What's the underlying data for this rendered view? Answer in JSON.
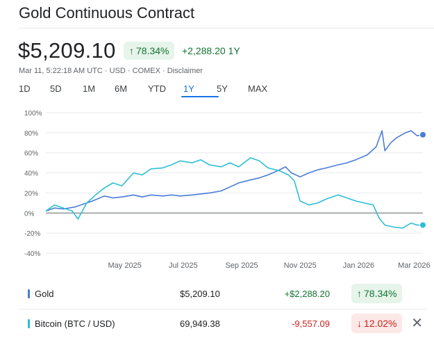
{
  "header": {
    "title": "Gold Continuous Contract",
    "price": "$5,209.10",
    "pct_change": "78.34%",
    "abs_change": "+2,288.20 1Y",
    "meta": "Mar 11, 5:22:18 AM UTC · USD · COMEX · Disclaimer"
  },
  "range_tabs": [
    "1D",
    "5D",
    "1M",
    "6M",
    "YTD",
    "1Y",
    "5Y",
    "MAX"
  ],
  "active_range": "1Y",
  "colors": {
    "gold_series": "#4a7bd8",
    "bitcoin_series": "#2bbfd4",
    "positive": "#137333",
    "negative": "#c5221f"
  },
  "legend": [
    {
      "name": "Gold",
      "price": "$5,209.10",
      "change": "+$2,288.20",
      "pct": "78.34%",
      "direction": "up",
      "color": "#4a7bd8"
    },
    {
      "name": "Bitcoin (BTC / USD)",
      "price": "69,949.38",
      "change": "-9,557.09",
      "pct": "12.02%",
      "direction": "down",
      "color": "#2bbfd4"
    }
  ],
  "chart_data": {
    "type": "line",
    "ylim": [
      -40,
      100
    ],
    "yticks": [
      100,
      80,
      60,
      40,
      20,
      0,
      -20,
      -40
    ],
    "ytick_labels": [
      "100%",
      "80%",
      "60%",
      "40%",
      "20%",
      "0%",
      "-20%",
      "-40%"
    ],
    "xtick_labels": [
      "May 2025",
      "Jul 2025",
      "Sep 2025",
      "Nov 2025",
      "Jan 2026",
      "Mar 2026"
    ],
    "xtick_positions": [
      2.7,
      4.7,
      6.7,
      8.7,
      10.7,
      12.6
    ],
    "xlim": [
      0,
      12.9
    ],
    "grid": true,
    "series": [
      {
        "name": "Gold",
        "x": [
          0,
          0.3,
          0.6,
          1.0,
          1.3,
          1.6,
          2.0,
          2.3,
          2.6,
          3.0,
          3.3,
          3.6,
          4.0,
          4.3,
          4.6,
          5.0,
          5.3,
          5.6,
          6.0,
          6.3,
          6.6,
          7.0,
          7.3,
          7.6,
          8.0,
          8.2,
          8.4,
          8.7,
          9.0,
          9.3,
          9.6,
          10.0,
          10.3,
          10.6,
          11.0,
          11.3,
          11.5,
          11.6,
          11.8,
          12.0,
          12.3,
          12.5,
          12.7,
          12.9
        ],
        "values": [
          2,
          5,
          4,
          6,
          9,
          12,
          17,
          15,
          16,
          18,
          16,
          18,
          17,
          18,
          17,
          18,
          19,
          20,
          22,
          26,
          30,
          33,
          35,
          38,
          43,
          46,
          40,
          36,
          40,
          43,
          45,
          48,
          50,
          53,
          58,
          66,
          82,
          62,
          70,
          75,
          80,
          82,
          77,
          78
        ]
      },
      {
        "name": "Bitcoin (BTC / USD)",
        "x": [
          0,
          0.3,
          0.6,
          0.9,
          1.1,
          1.4,
          1.7,
          2.0,
          2.3,
          2.6,
          3.0,
          3.3,
          3.6,
          4.0,
          4.3,
          4.6,
          5.0,
          5.3,
          5.6,
          6.0,
          6.3,
          6.6,
          7.0,
          7.3,
          7.6,
          8.0,
          8.3,
          8.5,
          8.7,
          9.0,
          9.3,
          9.6,
          10.0,
          10.3,
          10.6,
          10.9,
          11.2,
          11.4,
          11.6,
          11.9,
          12.2,
          12.5,
          12.7,
          12.9
        ],
        "values": [
          2,
          8,
          5,
          2,
          -6,
          10,
          18,
          25,
          30,
          27,
          40,
          38,
          44,
          45,
          48,
          52,
          50,
          53,
          48,
          46,
          50,
          46,
          55,
          52,
          45,
          42,
          38,
          32,
          12,
          8,
          10,
          14,
          18,
          15,
          12,
          10,
          8,
          -5,
          -12,
          -14,
          -15,
          -10,
          -12,
          -12
        ]
      }
    ]
  }
}
